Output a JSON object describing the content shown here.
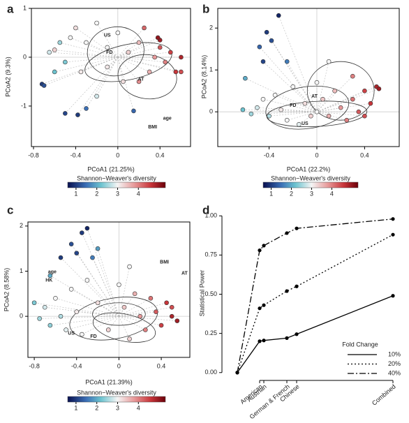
{
  "chart_data": [
    {
      "type": "scatter",
      "label": "a",
      "x_label": "PCoA1 (21.25%)",
      "y_label": "PCoA2 (9.3%)",
      "xlim": [
        -0.82,
        0.69
      ],
      "ylim": [
        -1.83,
        1.0
      ],
      "xticks": [
        -0.8,
        -0.4,
        0,
        0.4
      ],
      "yticks": [
        -1,
        0,
        1
      ],
      "grid": true,
      "annotations": [
        "US",
        "FD",
        "AT",
        "age",
        "BMI"
      ],
      "points": {
        "x": [
          -0.72,
          -0.7,
          -0.6,
          -0.65,
          -0.55,
          -0.5,
          -0.45,
          -0.4,
          -0.35,
          -0.3,
          -0.38,
          -0.5,
          -0.3,
          -0.2,
          -0.1,
          -0.1,
          0.0,
          0.05,
          0.1,
          0.15,
          0.2,
          0.25,
          0.3,
          0.35,
          0.4,
          0.45,
          0.5,
          0.55,
          0.6,
          0.6,
          0.4,
          0.38,
          0.2,
          -0.2,
          -0.6
        ],
        "y": [
          -0.55,
          -0.58,
          0.15,
          0.1,
          0.3,
          -0.1,
          0.4,
          0.6,
          -0.3,
          0.3,
          -1.18,
          -1.15,
          -1.05,
          0.7,
          0.2,
          -0.2,
          0.5,
          -0.5,
          0.1,
          -1.1,
          0.3,
          0.6,
          -0.3,
          0.0,
          0.2,
          -0.1,
          0.1,
          -0.3,
          0.0,
          -0.3,
          0.35,
          0.4,
          -0.5,
          -0.8,
          -0.3
        ],
        "diversity": [
          1.0,
          1.2,
          3.3,
          2.8,
          2.5,
          2.3,
          3.0,
          3.2,
          3.1,
          3.0,
          1.0,
          1.1,
          1.5,
          3.0,
          3.0,
          3.1,
          3.0,
          3.2,
          3.3,
          1.4,
          3.5,
          4.2,
          3.6,
          3.8,
          4.3,
          4.0,
          4.5,
          4.6,
          4.8,
          4.4,
          4.9,
          5.0,
          3.9,
          2.8,
          2.2
        ]
      },
      "colorbar": {
        "title": "Shannon−Weaver's diversity",
        "clim": [
          0.6,
          5.3
        ],
        "ticks": [
          1,
          2,
          3,
          4
        ]
      }
    },
    {
      "type": "scatter",
      "label": "b",
      "x_label": "PCoA1 (22.2%)",
      "y_label": "PCoA2 (8.14%)",
      "xlim": [
        -0.83,
        0.69
      ],
      "ylim": [
        -0.83,
        2.47
      ],
      "xticks": [
        -0.4,
        0,
        0.4
      ],
      "yticks": [
        0,
        1,
        2
      ],
      "grid": true,
      "annotations": [
        "AT",
        "US",
        "FD"
      ],
      "points": {
        "x": [
          -0.62,
          -0.55,
          -0.5,
          -0.45,
          -0.4,
          -0.35,
          -0.3,
          -0.25,
          -0.2,
          -0.1,
          -0.05,
          0.0,
          0.05,
          0.1,
          0.15,
          0.2,
          0.25,
          0.3,
          0.35,
          0.4,
          0.45,
          0.5,
          0.52,
          0.4,
          -0.32,
          -0.42,
          -0.38,
          -0.45,
          -0.25,
          -0.48,
          -0.6,
          0.0,
          0.1,
          -0.15,
          0.3
        ],
        "y": [
          0.05,
          -0.05,
          0.1,
          0.3,
          -0.1,
          0.4,
          0.05,
          -0.2,
          0.6,
          0.2,
          -0.1,
          0.7,
          0.3,
          -0.1,
          0.5,
          0.1,
          -0.2,
          0.3,
          0.0,
          0.5,
          0.2,
          0.6,
          0.55,
          -0.1,
          2.3,
          1.9,
          1.7,
          1.2,
          1.2,
          1.55,
          0.8,
          0.0,
          1.2,
          -0.3,
          0.85
        ],
        "diversity": [
          2.2,
          2.5,
          2.8,
          3.0,
          2.6,
          3.0,
          3.1,
          3.0,
          3.0,
          3.2,
          3.3,
          3.0,
          3.4,
          3.6,
          3.5,
          3.8,
          4.0,
          4.1,
          4.3,
          4.5,
          4.6,
          4.8,
          4.9,
          4.4,
          0.8,
          1.0,
          1.2,
          1.1,
          1.6,
          1.4,
          2.0,
          3.0,
          3.0,
          2.9,
          4.0
        ]
      },
      "colorbar": {
        "title": "Shannon−Weaver's diversity",
        "clim": [
          0.6,
          5.3
        ],
        "ticks": [
          1,
          2,
          3,
          4
        ]
      }
    },
    {
      "type": "scatter",
      "label": "c",
      "x_label": "PCoA1 (21.39%)",
      "y_label": "PCoA2 (8.58%)",
      "xlim": [
        -0.86,
        0.67
      ],
      "ylim": [
        -0.91,
        2.09
      ],
      "xticks": [
        -0.8,
        -0.4,
        0,
        0.4
      ],
      "yticks": [
        0,
        1,
        2
      ],
      "grid": true,
      "annotations": [
        "BMI",
        "AT",
        "age",
        "HK",
        "US",
        "FD"
      ],
      "points": {
        "x": [
          -0.75,
          -0.7,
          -0.65,
          -0.6,
          -0.55,
          -0.5,
          -0.45,
          -0.4,
          -0.35,
          -0.3,
          -0.2,
          -0.1,
          0.0,
          0.05,
          0.1,
          0.15,
          0.2,
          0.25,
          0.3,
          0.35,
          0.4,
          0.45,
          0.5,
          0.55,
          0.5,
          -0.3,
          -0.35,
          -0.45,
          -0.4,
          -0.25,
          -0.55,
          -0.65,
          -0.8,
          0.1,
          -0.2
        ],
        "y": [
          -0.05,
          0.2,
          -0.2,
          0.4,
          0.0,
          -0.3,
          0.6,
          0.1,
          -0.4,
          0.8,
          0.3,
          -0.3,
          0.7,
          0.2,
          -0.5,
          0.5,
          0.0,
          -0.3,
          0.4,
          0.1,
          -0.2,
          0.3,
          0.0,
          -0.1,
          0.2,
          1.95,
          1.85,
          1.6,
          1.4,
          1.3,
          1.3,
          0.9,
          0.3,
          1.1,
          1.5
        ],
        "diversity": [
          2.5,
          2.8,
          2.4,
          3.0,
          2.6,
          2.9,
          3.0,
          3.1,
          3.0,
          3.0,
          3.2,
          3.3,
          3.0,
          3.4,
          3.3,
          3.6,
          3.8,
          4.0,
          4.1,
          4.3,
          4.5,
          4.6,
          4.8,
          4.9,
          4.4,
          0.8,
          1.0,
          1.2,
          1.1,
          1.6,
          1.0,
          2.0,
          2.3,
          3.0,
          1.9
        ]
      },
      "colorbar": {
        "title": "Shannon−Weaver's diversity",
        "clim": [
          0.6,
          5.3
        ],
        "ticks": [
          1,
          2,
          3,
          4
        ]
      }
    },
    {
      "type": "line",
      "label": "d",
      "y_label": "Statistical Power",
      "categories": [
        null,
        "American",
        "Austrian",
        "German & French",
        "Chinese",
        "Combined"
      ],
      "ylim": [
        -0.05,
        1.05
      ],
      "yticks": [
        {
          "value": 0,
          "label": "0.00"
        },
        0.25,
        {
          "value": 0.5,
          "label": "0.50"
        },
        0.75,
        {
          "value": 1,
          "label": "1.00"
        }
      ],
      "legend_title": "Fold Change",
      "legend": "bottom-right",
      "series": [
        {
          "name": "10%",
          "color": "#000000",
          "line_style": "solid",
          "values": [
            0,
            0.2,
            0.205,
            0.22,
            0.245,
            0.49
          ]
        },
        {
          "name": "20%",
          "color": "#000000",
          "line_style": "dotted",
          "values": [
            0,
            0.41,
            0.43,
            0.52,
            0.55,
            0.88
          ]
        },
        {
          "name": "40%",
          "color": "#000000",
          "line_style": "dashdot",
          "values": [
            0,
            0.78,
            0.81,
            0.89,
            0.92,
            0.98
          ]
        }
      ]
    }
  ]
}
